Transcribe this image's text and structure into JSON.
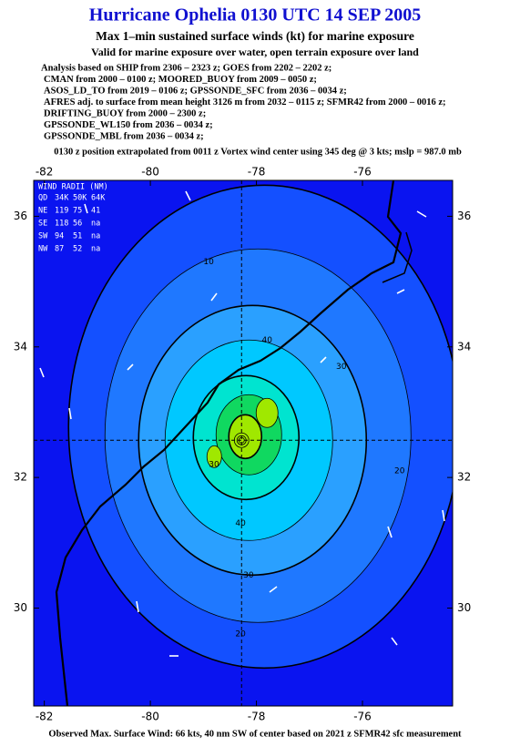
{
  "chart_data": {
    "type": "wind_analysis",
    "title": "Hurricane Ophelia 0130 UTC 14 SEP 2005",
    "subtitle": "Max 1–min sustained surface winds (kt) for marine exposure",
    "subtitle2": "Valid for marine exposure over water, open terrain exposure over land",
    "analysis_lines": [
      "Analysis based on  SHIP from 2306 – 2323 z;  GOES from 2202 – 2202 z;",
      "CMAN from 2000 – 0100 z;  MOORED_BUOY from 2009 – 0050 z;",
      "ASOS_LD_TO from 2019 – 0106 z;  GPSSONDE_SFC from 2036 – 0034 z;",
      "AFRES adj. to surface from mean height 3126 m from 2032 – 0115 z;  SFMR42 from 2000 – 0016 z;",
      "DRIFTING_BUOY from 2000 – 2300 z;",
      "GPSSONDE_WL150 from 2036 – 0034 z;",
      "GPSSONDE_MBL from 2036 – 0034 z;"
    ],
    "position_note": "0130 z position extrapolated from 0011 z Vortex wind center using 345 deg @ 3 kts; mslp = 987.0 mb",
    "footer": "Observed Max. Surface Wind: 66 kts, 40 nm SW of center based on 2021 z SFMR42 sfc measurement",
    "xlim": [
      -82.2,
      -74.3
    ],
    "ylim": [
      28.5,
      36.55
    ],
    "xticks": [
      -82,
      -80,
      -78,
      -76
    ],
    "yticks": [
      30,
      32,
      34,
      36
    ],
    "center": {
      "lon": -78.28,
      "lat": 32.57
    },
    "wind_radii": {
      "title": "WIND RADII (NM)",
      "header": [
        "QD",
        "34K",
        "50K",
        "64K"
      ],
      "rows": [
        [
          "NE",
          119,
          75,
          41
        ],
        [
          "SE",
          118,
          56,
          "na"
        ],
        [
          "SW",
          94,
          51,
          "na"
        ],
        [
          "NW",
          87,
          52,
          "na"
        ]
      ]
    },
    "background_color": "#0a14f0",
    "levels": [
      {
        "value": 10,
        "color": "#1450ff"
      },
      {
        "value": 20,
        "color": "#1f78ff"
      },
      {
        "value": 30,
        "color": "#2aa0ff"
      },
      {
        "value": 40,
        "color": "#00c8ff"
      },
      {
        "value": 50,
        "color": "#00e4d0"
      },
      {
        "value": 60,
        "color": "#10d860"
      },
      {
        "value": 70,
        "color": "#a0e800"
      }
    ],
    "contour_labels": [
      {
        "text": "40",
        "lon": -77.8,
        "lat": 34.1
      },
      {
        "text": "30",
        "lon": -76.4,
        "lat": 33.7
      },
      {
        "text": "20",
        "lon": -75.3,
        "lat": 32.1
      },
      {
        "text": "40",
        "lon": -78.3,
        "lat": 31.3
      },
      {
        "text": "30",
        "lon": -78.15,
        "lat": 30.5
      },
      {
        "text": "20",
        "lon": -78.3,
        "lat": 29.6
      },
      {
        "text": "10",
        "lon": -78.9,
        "lat": 35.3
      },
      {
        "text": "30",
        "lon": -78.8,
        "lat": 32.2
      }
    ]
  }
}
